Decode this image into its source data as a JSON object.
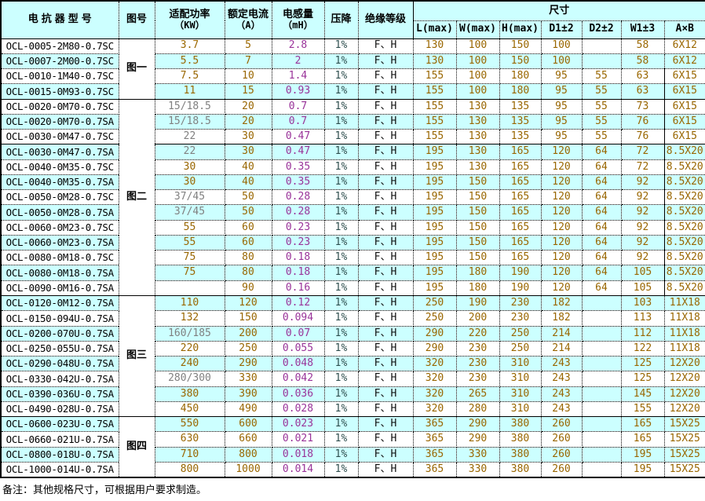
{
  "colors": {
    "header_bg": "#ccffff",
    "row_alt": "#ccffff",
    "value_orange": "#996600",
    "value_purple": "#993399",
    "value_gray": "#808080",
    "drop_teal": "#2f4f4f",
    "border": "#000000"
  },
  "table": {
    "header": {
      "model": "电抗器型号",
      "figure": "图号",
      "power": "适配功率",
      "power_unit": "（KW）",
      "current": "额定电流",
      "current_unit": "（A）",
      "inductance": "电感量",
      "inductance_unit": "（mH）",
      "drop": "压降",
      "insulation": "绝缘等级",
      "size": "尺寸"
    },
    "size_header": {
      "sub": [
        "L(max)",
        "W(max)",
        "H(max)",
        "D1±2",
        "D2±2",
        "W1±3",
        "A×B"
      ]
    },
    "groups": [
      {
        "label": "图一",
        "start": 0,
        "count": 4
      },
      {
        "label": "图二",
        "start": 4,
        "count": 13
      },
      {
        "label": "图三",
        "start": 17,
        "count": 8
      },
      {
        "label": "图四",
        "start": 25,
        "count": 4
      }
    ],
    "muted_power_rows": [
      4,
      5,
      6,
      7,
      10,
      11,
      19,
      22
    ],
    "rows": [
      [
        "OCL-0005-2M80-0.7SC",
        "3.7",
        "5",
        "2.8",
        "1%",
        "F、H",
        "130",
        "100",
        "150",
        "100",
        "",
        "58",
        "6X12"
      ],
      [
        "OCL-0007-2M00-0.7SC",
        "5.5",
        "7",
        "2",
        "1%",
        "F、H",
        "130",
        "100",
        "150",
        "100",
        "",
        "58",
        "6X12"
      ],
      [
        "OCL-0010-1M40-0.7SC",
        "7.5",
        "10",
        "1.4",
        "1%",
        "F、H",
        "155",
        "100",
        "180",
        "95",
        "55",
        "63",
        "6X15"
      ],
      [
        "OCL-0015-0M93-0.7SC",
        "11",
        "15",
        "0.93",
        "1%",
        "F、H",
        "155",
        "100",
        "180",
        "95",
        "55",
        "63",
        "6X15"
      ],
      [
        "OCL-0020-0M70-0.7SC",
        "15/18.5",
        "20",
        "0.7",
        "1%",
        "F、H",
        "155",
        "130",
        "135",
        "95",
        "55",
        "73",
        "6X15"
      ],
      [
        "OCL-0020-0M70-0.7SA",
        "15/18.5",
        "20",
        "0.7",
        "1%",
        "F、H",
        "155",
        "130",
        "135",
        "95",
        "55",
        "76",
        "6X15"
      ],
      [
        "OCL-0030-0M47-0.7SC",
        "22",
        "30",
        "0.47",
        "1%",
        "F、H",
        "155",
        "130",
        "135",
        "95",
        "55",
        "76",
        "6X15"
      ],
      [
        "OCL-0030-0M47-0.7SA",
        "22",
        "30",
        "0.47",
        "1%",
        "F、H",
        "195",
        "130",
        "165",
        "120",
        "64",
        "72",
        "8.5X20"
      ],
      [
        "OCL-0040-0M35-0.7SC",
        "30",
        "40",
        "0.35",
        "1%",
        "F、H",
        "195",
        "130",
        "165",
        "120",
        "64",
        "72",
        "8.5X20"
      ],
      [
        "OCL-0040-0M35-0.7SA",
        "30",
        "40",
        "0.35",
        "1%",
        "F、H",
        "195",
        "150",
        "165",
        "120",
        "64",
        "92",
        "8.5X20"
      ],
      [
        "OCL-0050-0M28-0.7SC",
        "37/45",
        "50",
        "0.28",
        "1%",
        "F、H",
        "195",
        "150",
        "165",
        "120",
        "64",
        "92",
        "8.5X20"
      ],
      [
        "OCL-0050-0M28-0.7SA",
        "37/45",
        "50",
        "0.28",
        "1%",
        "F、H",
        "195",
        "150",
        "165",
        "120",
        "64",
        "92",
        "8.5X20"
      ],
      [
        "OCL-0060-0M23-0.7SC",
        "55",
        "60",
        "0.23",
        "1%",
        "F、H",
        "195",
        "150",
        "165",
        "120",
        "64",
        "92",
        "8.5X20"
      ],
      [
        "OCL-0060-0M23-0.7SA",
        "55",
        "60",
        "0.23",
        "1%",
        "F、H",
        "195",
        "150",
        "165",
        "120",
        "64",
        "92",
        "8.5X20"
      ],
      [
        "OCL-0080-0M18-0.7SC",
        "75",
        "80",
        "0.18",
        "1%",
        "F、H",
        "195",
        "150",
        "165",
        "120",
        "64",
        "92",
        "8.5X20"
      ],
      [
        "OCL-0080-0M18-0.7SA",
        "75",
        "80",
        "0.18",
        "1%",
        "F、H",
        "195",
        "180",
        "190",
        "120",
        "64",
        "105",
        "8.5X20"
      ],
      [
        "OCL-0090-0M16-0.7SA",
        "",
        "90",
        "0.16",
        "1%",
        "F、H",
        "195",
        "180",
        "190",
        "120",
        "64",
        "105",
        "8.5X20"
      ],
      [
        "OCL-0120-0M12-0.7SA",
        "110",
        "120",
        "0.12",
        "1%",
        "F、H",
        "250",
        "190",
        "230",
        "182",
        "",
        "103",
        "11X18"
      ],
      [
        "OCL-0150-094U-0.7SA",
        "132",
        "150",
        "0.094",
        "1%",
        "F、H",
        "250",
        "200",
        "230",
        "182",
        "",
        "113",
        "11X18"
      ],
      [
        "OCL-0200-070U-0.7SA",
        "160/185",
        "200",
        "0.07",
        "1%",
        "F、H",
        "290",
        "220",
        "250",
        "214",
        "",
        "112",
        "11X18"
      ],
      [
        "OCL-0250-055U-0.7SA",
        "220",
        "250",
        "0.055",
        "1%",
        "F、H",
        "290",
        "230",
        "250",
        "214",
        "",
        "122",
        "11X18"
      ],
      [
        "OCL-0290-048U-0.7SA",
        "240",
        "290",
        "0.048",
        "1%",
        "F、H",
        "320",
        "230",
        "310",
        "243",
        "",
        "125",
        "12X20"
      ],
      [
        "OCL-0330-042U-0.7SA",
        "280/300",
        "330",
        "0.042",
        "1%",
        "F、H",
        "320",
        "230",
        "310",
        "243",
        "",
        "125",
        "12X20"
      ],
      [
        "OCL-0390-036U-0.7SA",
        "380",
        "390",
        "0.036",
        "1%",
        "F、H",
        "320",
        "265",
        "310",
        "243",
        "",
        "145",
        "12X20"
      ],
      [
        "OCL-0490-028U-0.7SA",
        "450",
        "490",
        "0.028",
        "1%",
        "F、H",
        "320",
        "280",
        "310",
        "243",
        "",
        "155",
        "12X20"
      ],
      [
        "OCL-0600-023U-0.7SA",
        "550",
        "600",
        "0.023",
        "1%",
        "F、H",
        "365",
        "290",
        "380",
        "260",
        "",
        "165",
        "15X25"
      ],
      [
        "OCL-0660-021U-0.7SA",
        "630",
        "660",
        "0.021",
        "1%",
        "F、H",
        "365",
        "290",
        "380",
        "260",
        "",
        "165",
        "15X25"
      ],
      [
        "OCL-0800-018U-0.7SA",
        "710",
        "800",
        "0.018",
        "1%",
        "F、H",
        "365",
        "330",
        "380",
        "260",
        "",
        "195",
        "15X25"
      ],
      [
        "OCL-1000-014U-0.7SA",
        "800",
        "1000",
        "0.014",
        "1%",
        "F、H",
        "365",
        "330",
        "380",
        "260",
        "",
        "195",
        "15X25"
      ]
    ]
  },
  "note": {
    "text": "备注：其他规格尺寸，可根据用户要求制造。"
  }
}
